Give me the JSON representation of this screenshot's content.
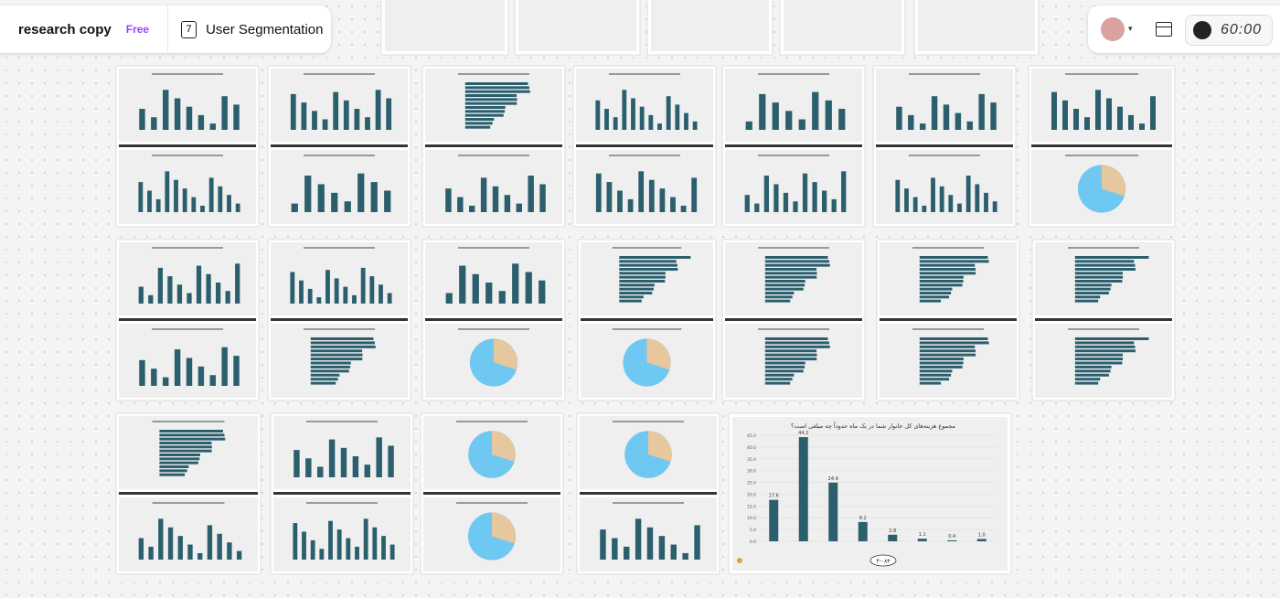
{
  "toolbar": {
    "file_name": "research copy",
    "plan_badge": "Free",
    "page_number": "7",
    "page_name": "User Segmentation"
  },
  "session": {
    "timer": "60:00"
  },
  "featured_chart": {
    "type": "bar",
    "title": "مجموع هزینه‌های کل خانوار شما در یک ماه حدوداً چه مبلغی است؟",
    "values": [
      17.6,
      44.2,
      24.9,
      8.2,
      2.8,
      1.1,
      0.4,
      1.0
    ],
    "value_labels": [
      "17.6",
      "44.2",
      "24.9",
      "8.2",
      "2.8",
      "1.1",
      "0.4",
      "1.0"
    ],
    "color": "#2b5f6e",
    "ylim": [
      0,
      45
    ],
    "yticks": [
      {
        "value": 0,
        "label": "0.0"
      },
      {
        "value": 5,
        "label": "5.0"
      },
      {
        "value": 10,
        "label": "10.0"
      },
      {
        "value": 15,
        "label": "15.0"
      },
      {
        "value": 20,
        "label": "20.0"
      },
      {
        "value": 25,
        "label": "25.0"
      },
      {
        "value": 30,
        "label": "30.0"
      },
      {
        "value": 35,
        "label": "35.0"
      },
      {
        "value": 40,
        "label": "40.0"
      },
      {
        "value": 45,
        "label": "45.0"
      }
    ],
    "page_label": "۴-۰۸۳"
  }
}
